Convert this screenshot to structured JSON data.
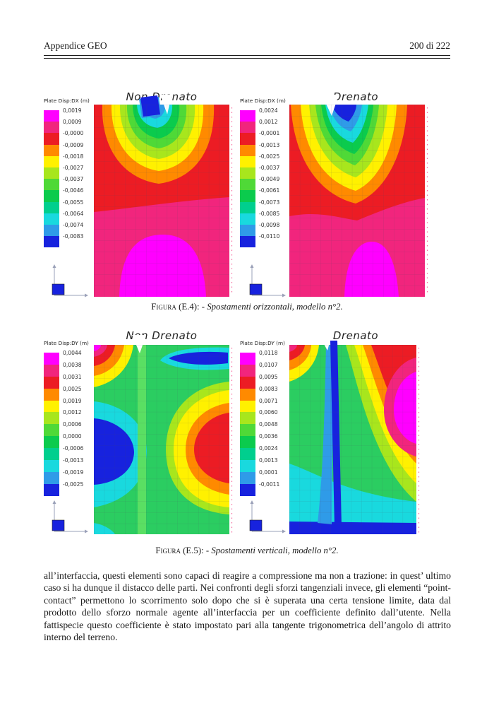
{
  "header": {
    "left": "Appendice GEO",
    "right": "200 di 222"
  },
  "palette": {
    "legend_colors": [
      "#FF00FF",
      "#F1257D",
      "#EC1C24",
      "#FF8A00",
      "#FFF100",
      "#A8E61D",
      "#4FD937",
      "#0BCB4D",
      "#00CF8E",
      "#19D9DE",
      "#2F9BE8",
      "#1722DE"
    ],
    "field_green": "#2BCD61",
    "wall_green": "#5ADF63",
    "mesh_line": "#45455e",
    "edge_dots": "#f4498a"
  },
  "figures": [
    {
      "caption_label": "Figura (E.4): -",
      "caption_text": "Spostamenti orizzontali, modello n°2.",
      "plots": [
        {
          "title": "Non Drenato",
          "legend_title": "Plate Disp:DX  (m)",
          "legend_values": [
            "0,0019",
            "0,0009",
            "-0,0000",
            "-0,0009",
            "-0,0018",
            "-0,0027",
            "-0,0037",
            "-0,0046",
            "-0,0055",
            "-0,0064",
            "-0,0074",
            "-0,0083"
          ]
        },
        {
          "title": "Drenato",
          "legend_title": "Plate Disp:DX  (m)",
          "legend_values": [
            "0,0024",
            "0,0012",
            "-0,0001",
            "-0,0013",
            "-0,0025",
            "-0,0037",
            "-0,0049",
            "-0,0061",
            "-0,0073",
            "-0,0085",
            "-0,0098",
            "-0,0110"
          ]
        }
      ]
    },
    {
      "caption_label": "Figura (E.5): -",
      "caption_text": "Spostamenti verticali, modello n°2.",
      "plots": [
        {
          "title": "Non Drenato",
          "legend_title": "Plate Disp:DY  (m)",
          "legend_values": [
            "0,0044",
            "0,0038",
            "0,0031",
            "0,0025",
            "0,0019",
            "0,0012",
            "0,0006",
            "0,0000",
            "-0,0006",
            "-0,0013",
            "-0,0019",
            "-0,0025"
          ]
        },
        {
          "title": "Drenato",
          "legend_title": "Plate Disp:DY  (m)",
          "legend_values": [
            "0,0118",
            "0,0107",
            "0,0095",
            "0,0083",
            "0,0071",
            "0,0060",
            "0,0048",
            "0,0036",
            "0,0024",
            "0,0013",
            "0,0001",
            "-0,0011"
          ]
        }
      ]
    }
  ],
  "body_text": "all’interfaccia, questi elementi sono capaci di reagire a compressione ma non a trazione:  in quest’ ultimo caso si ha dunque il distacco delle parti.  Nei confronti degli sforzi tangenziali invece, gli elementi “point-contact” permettono lo scorrimento solo dopo che si è superata una certa tensione limite, data dal prodotto dello sforzo normale agente all’interfaccia per un coefficiente definito dall’utente.  Nella fattispecie questo coefficiente è stato impostato pari alla tangente trigonometrica dell’angolo di attrito interno del terreno.",
  "chart_data": [
    {
      "type": "heatmap",
      "figure": "E.4",
      "title": "Non Drenato",
      "quantity": "Plate Disp:DX",
      "units": "m",
      "contour_levels": [
        0.0019,
        0.0009,
        -0.0,
        -0.0009,
        -0.0018,
        -0.0027,
        -0.0037,
        -0.0046,
        -0.0055,
        -0.0064,
        -0.0074,
        -0.0083
      ],
      "legend_position": "left",
      "grid": "FE mesh overlay",
      "pattern": "rainbow bands (red outer to blue inner) converging at excavation notch at top centre; deep-pink lower half with magenta dome at bottom centre"
    },
    {
      "type": "heatmap",
      "figure": "E.4",
      "title": "Drenato",
      "quantity": "Plate Disp:DX",
      "units": "m",
      "contour_levels": [
        0.0024,
        0.0012,
        -0.0001,
        -0.0013,
        -0.0025,
        -0.0037,
        -0.0049,
        -0.0061,
        -0.0073,
        -0.0085,
        -0.0098,
        -0.011
      ],
      "legend_position": "left",
      "grid": "FE mesh overlay",
      "pattern": "V-shaped rainbow bands dipping from top edges to mid-depth below the notch; deep-pink lower half with magenta blob at bottom centre-right"
    },
    {
      "type": "heatmap",
      "figure": "E.5",
      "title": "Non Drenato",
      "quantity": "Plate Disp:DY",
      "units": "m",
      "contour_levels": [
        0.0044,
        0.0038,
        0.0031,
        0.0025,
        0.0019,
        0.0012,
        0.0006,
        0.0,
        -0.0006,
        -0.0013,
        -0.0019,
        -0.0025
      ],
      "legend_position": "left",
      "grid": "FE mesh overlay",
      "pattern": "green field; blue settlement bulb left of wall, red heave bulb right of wall, magenta-to-yellow fan at top-left corner, blue lens under surface at top-right"
    },
    {
      "type": "heatmap",
      "figure": "E.5",
      "title": "Drenato",
      "quantity": "Plate Disp:DY",
      "units": "m",
      "contour_levels": [
        0.0118,
        0.0107,
        0.0095,
        0.0083,
        0.0071,
        0.006,
        0.0048,
        0.0036,
        0.0024,
        0.0013,
        0.0001,
        -0.0011
      ],
      "legend_position": "left",
      "grid": "FE mesh overlay",
      "pattern": "green field; dark-blue wall strip from notch to base, magenta heave bulb wrapped by pink-red-orange-yellow bands on right side, red/orange fan at top-left, blue band along bottom"
    }
  ]
}
